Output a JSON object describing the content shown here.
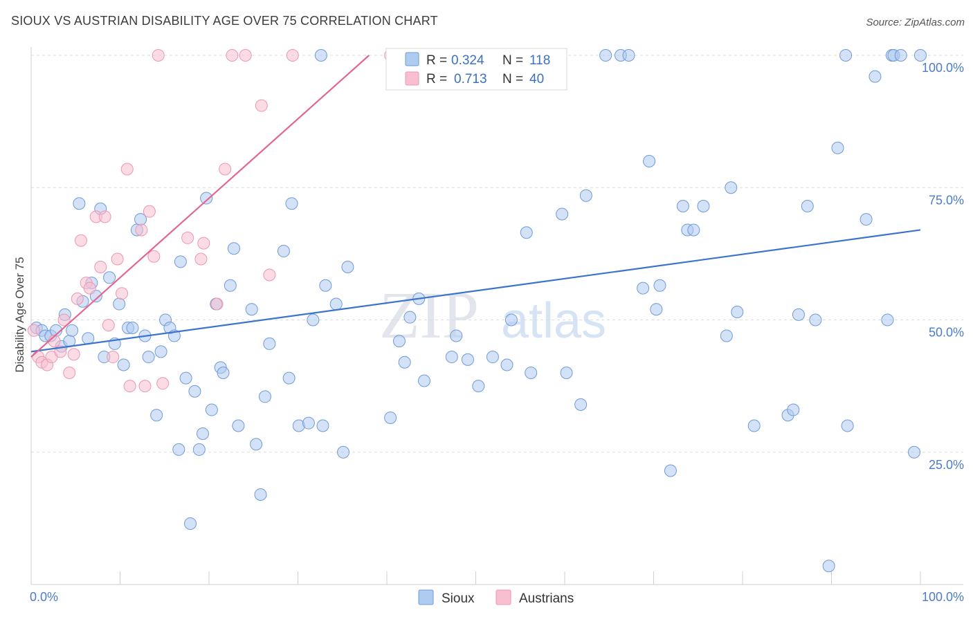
{
  "title": "SIOUX VS AUSTRIAN DISABILITY AGE OVER 75 CORRELATION CHART",
  "source": "Source: ZipAtlas.com",
  "watermark": {
    "zip": "ZIP",
    "atlas": "atlas"
  },
  "chart_data": {
    "type": "scatter",
    "title": "SIOUX VS AUSTRIAN DISABILITY AGE OVER 75 CORRELATION CHART",
    "xlabel": "",
    "ylabel": "Disability Age Over 75",
    "xlim": [
      0,
      100
    ],
    "ylim": [
      0,
      100
    ],
    "x_tick_labels": [
      "0.0%",
      "100.0%"
    ],
    "y_tick_labels": [
      {
        "value": 100,
        "label": "100.0%"
      },
      {
        "value": 75,
        "label": "75.0%"
      },
      {
        "value": 50,
        "label": "50.0%"
      },
      {
        "value": 25,
        "label": "25.0%"
      }
    ],
    "grid": true,
    "legend_position": "top-center",
    "colors": {
      "Sioux": {
        "fill": "#aecbf0",
        "stroke": "#6f9ad8",
        "line": "#3b74cc"
      },
      "Austrians": {
        "fill": "#f8bfd0",
        "stroke": "#ec96b2",
        "line": "#e2668f"
      }
    },
    "stats": [
      {
        "name": "Sioux",
        "r_label": "R =",
        "r": "0.324",
        "n_label": "N =",
        "n": "118"
      },
      {
        "name": "Austrians",
        "r_label": "R =",
        "r": "0.713",
        "n_label": "N =",
        "n": "40"
      }
    ],
    "series": [
      {
        "name": "Sioux",
        "trendline": [
          [
            0,
            44
          ],
          [
            100,
            67
          ]
        ],
        "points": [
          [
            0.6,
            48.5
          ],
          [
            1.2,
            48
          ],
          [
            1.6,
            47
          ],
          [
            2.2,
            47
          ],
          [
            2.8,
            48
          ],
          [
            3.4,
            45
          ],
          [
            3.8,
            51
          ],
          [
            4.3,
            46
          ],
          [
            4.6,
            48
          ],
          [
            5.4,
            72
          ],
          [
            5.8,
            53.5
          ],
          [
            6.4,
            46.5
          ],
          [
            6.8,
            57
          ],
          [
            7.3,
            54.5
          ],
          [
            7.8,
            71
          ],
          [
            8.2,
            43
          ],
          [
            8.8,
            58
          ],
          [
            9.4,
            45.5
          ],
          [
            9.9,
            53
          ],
          [
            10.4,
            41.5
          ],
          [
            10.9,
            48.5
          ],
          [
            11.4,
            48.5
          ],
          [
            11.9,
            67
          ],
          [
            12.3,
            69
          ],
          [
            12.8,
            47
          ],
          [
            13.2,
            43
          ],
          [
            14.1,
            32
          ],
          [
            14.6,
            44
          ],
          [
            15.1,
            50
          ],
          [
            15.6,
            48.5
          ],
          [
            16.1,
            47
          ],
          [
            16.6,
            25.5
          ],
          [
            16.8,
            61
          ],
          [
            17.4,
            39
          ],
          [
            17.9,
            11.5
          ],
          [
            18.4,
            36.5
          ],
          [
            18.9,
            25.5
          ],
          [
            19.3,
            28.5
          ],
          [
            19.7,
            73
          ],
          [
            20.3,
            33
          ],
          [
            20.8,
            53
          ],
          [
            21.3,
            41
          ],
          [
            21.6,
            40
          ],
          [
            22.4,
            56.5
          ],
          [
            22.8,
            63.5
          ],
          [
            23.3,
            30
          ],
          [
            24.8,
            52
          ],
          [
            25.3,
            26.5
          ],
          [
            25.8,
            17
          ],
          [
            26.3,
            35.5
          ],
          [
            26.8,
            45.5
          ],
          [
            28.4,
            63
          ],
          [
            29.0,
            39
          ],
          [
            29.3,
            72
          ],
          [
            30.1,
            30
          ],
          [
            31.2,
            30.5
          ],
          [
            31.7,
            50
          ],
          [
            32.6,
            100
          ],
          [
            32.8,
            30
          ],
          [
            33.1,
            56.5
          ],
          [
            34.3,
            53
          ],
          [
            35.1,
            25
          ],
          [
            35.6,
            60
          ],
          [
            40.4,
            31.5
          ],
          [
            41.4,
            46
          ],
          [
            42.0,
            42
          ],
          [
            42.6,
            50.5
          ],
          [
            43.6,
            54
          ],
          [
            44.2,
            38.5
          ],
          [
            45.3,
            100
          ],
          [
            47.3,
            43
          ],
          [
            47.8,
            47
          ],
          [
            49.1,
            42.5
          ],
          [
            50.3,
            37.5
          ],
          [
            51.9,
            43
          ],
          [
            53.5,
            41.5
          ],
          [
            54.0,
            50
          ],
          [
            55.7,
            66.5
          ],
          [
            56.2,
            40
          ],
          [
            59.7,
            70
          ],
          [
            60.2,
            40
          ],
          [
            61.8,
            34
          ],
          [
            62.4,
            73.5
          ],
          [
            64.6,
            100
          ],
          [
            66.3,
            100
          ],
          [
            67.2,
            100
          ],
          [
            68.8,
            56
          ],
          [
            69.5,
            80
          ],
          [
            70.3,
            52
          ],
          [
            70.7,
            56.5
          ],
          [
            71.9,
            21.5
          ],
          [
            73.3,
            71.5
          ],
          [
            73.8,
            67
          ],
          [
            74.5,
            67
          ],
          [
            75.6,
            71.5
          ],
          [
            78.2,
            47
          ],
          [
            78.7,
            75
          ],
          [
            79.4,
            51.5
          ],
          [
            81.3,
            30
          ],
          [
            85.1,
            32
          ],
          [
            85.7,
            33
          ],
          [
            86.3,
            51
          ],
          [
            87.3,
            71.5
          ],
          [
            88.2,
            50
          ],
          [
            89.7,
            3.5
          ],
          [
            90.7,
            82.5
          ],
          [
            91.6,
            100
          ],
          [
            91.8,
            30
          ],
          [
            93.9,
            69
          ],
          [
            94.9,
            96
          ],
          [
            96.3,
            50
          ],
          [
            96.8,
            100
          ],
          [
            97.0,
            100
          ],
          [
            97.8,
            100
          ],
          [
            99.3,
            25
          ],
          [
            100,
            100
          ]
        ]
      },
      {
        "name": "Austrians",
        "trendline": [
          [
            0,
            43
          ],
          [
            38,
            100
          ]
        ],
        "points": [
          [
            0.3,
            48
          ],
          [
            0.8,
            43
          ],
          [
            1.2,
            42
          ],
          [
            1.8,
            41.5
          ],
          [
            2.3,
            43
          ],
          [
            2.6,
            46
          ],
          [
            3.3,
            44
          ],
          [
            3.7,
            50
          ],
          [
            4.3,
            40
          ],
          [
            4.8,
            43.5
          ],
          [
            5.2,
            54
          ],
          [
            5.6,
            65
          ],
          [
            6.2,
            57
          ],
          [
            6.6,
            56
          ],
          [
            7.3,
            69.5
          ],
          [
            7.8,
            60
          ],
          [
            8.3,
            69.5
          ],
          [
            8.7,
            49
          ],
          [
            9.2,
            43
          ],
          [
            9.7,
            61.5
          ],
          [
            10.2,
            55
          ],
          [
            10.8,
            78.5
          ],
          [
            11.1,
            37.5
          ],
          [
            12.4,
            67
          ],
          [
            12.8,
            37.5
          ],
          [
            13.3,
            70.5
          ],
          [
            13.8,
            62
          ],
          [
            14.3,
            100
          ],
          [
            14.8,
            38
          ],
          [
            17.6,
            65.5
          ],
          [
            19.1,
            61.5
          ],
          [
            19.4,
            64.5
          ],
          [
            20.9,
            53
          ],
          [
            21.8,
            78.5
          ],
          [
            22.6,
            100
          ],
          [
            24.1,
            100
          ],
          [
            25.9,
            90.5
          ],
          [
            26.8,
            58.5
          ],
          [
            29.4,
            100
          ],
          [
            40.4,
            100
          ]
        ]
      }
    ]
  }
}
